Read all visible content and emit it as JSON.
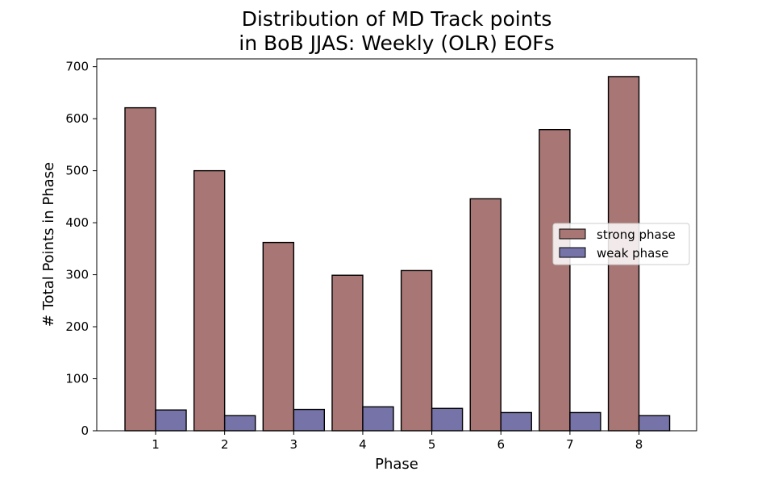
{
  "chart_data": {
    "type": "bar",
    "title": "Distribution of MD Track points",
    "subtitle": "in BoB JJAS: Weekly (OLR) EOFs",
    "xlabel": "Phase",
    "ylabel": "# Total Points in Phase",
    "categories": [
      "1",
      "2",
      "3",
      "4",
      "5",
      "6",
      "7",
      "8"
    ],
    "ylim": [
      0,
      715
    ],
    "yticks": [
      0,
      100,
      200,
      300,
      400,
      500,
      600,
      700
    ],
    "grid": false,
    "legend_position": "center-right",
    "series": [
      {
        "name": "strong phase",
        "color": "#a87674",
        "values": [
          621,
          500,
          362,
          299,
          308,
          446,
          579,
          681
        ]
      },
      {
        "name": "weak phase",
        "color": "#7673a8",
        "values": [
          40,
          29,
          41,
          46,
          43,
          35,
          35,
          29
        ]
      }
    ]
  }
}
